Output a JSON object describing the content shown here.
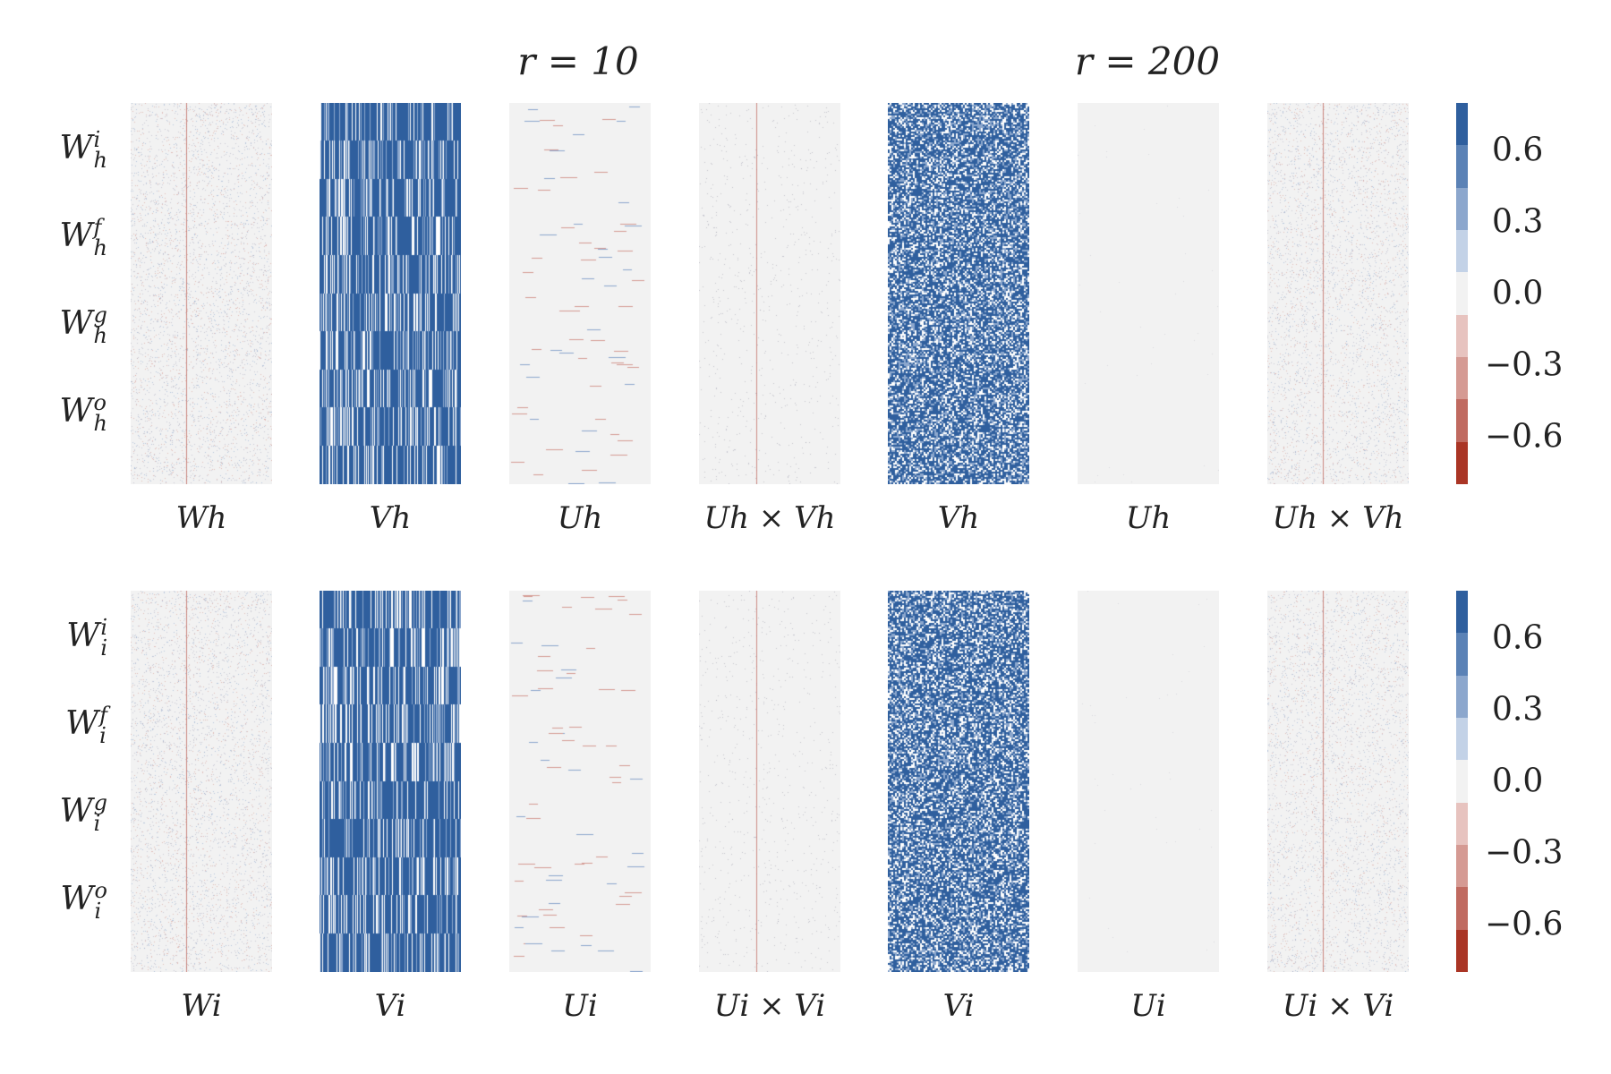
{
  "titles": {
    "left": "r = 10",
    "right": "r = 200"
  },
  "rows": [
    {
      "id": "h",
      "row_labels": [
        {
          "base": "W",
          "sup": "i",
          "sub": "h"
        },
        {
          "base": "W",
          "sup": "f",
          "sub": "h"
        },
        {
          "base": "W",
          "sup": "g",
          "sub": "h"
        },
        {
          "base": "W",
          "sup": "o",
          "sub": "h"
        }
      ],
      "panel_labels": [
        "W_h",
        "V_h",
        "U_h",
        "U_h × V_h",
        "V_h",
        "U_h",
        "U_h × V_h"
      ],
      "panel_labels_display": [
        "Wh",
        "Vh",
        "Uh",
        "Uh × Vh",
        "Vh",
        "Uh",
        "Uh × Vh"
      ]
    },
    {
      "id": "i",
      "row_labels": [
        {
          "base": "W",
          "sup": "i",
          "sub": "i"
        },
        {
          "base": "W",
          "sup": "f",
          "sub": "i"
        },
        {
          "base": "W",
          "sup": "g",
          "sub": "i"
        },
        {
          "base": "W",
          "sup": "o",
          "sub": "i"
        }
      ],
      "panel_labels": [
        "W_i",
        "V_i",
        "U_i",
        "U_i × V_i",
        "V_i",
        "U_i",
        "U_i × V_i"
      ],
      "panel_labels_display": [
        "Wi",
        "Vi",
        "Ui",
        "Ui × Vi",
        "Vi",
        "Ui",
        "Ui × Vi"
      ]
    }
  ],
  "chart_data": {
    "type": "heatmap",
    "description_free": true,
    "panel_kinds": [
      "weight-noise",
      "dense-binary",
      "sparse-lines",
      "near-zero-lines",
      "dense-random",
      "near-zero",
      "weight-noise"
    ],
    "colorbar": {
      "ticks": [
        "0.6",
        "0.3",
        "0.0",
        "−0.3",
        "−0.6"
      ],
      "tick_values": [
        0.6,
        0.3,
        0.0,
        -0.3,
        -0.6
      ],
      "range": [
        -0.8,
        0.8
      ],
      "colors": [
        "#2f5f9e",
        "#5b82b6",
        "#8ca7cd",
        "#c3d2e7",
        "#f2f2f2",
        "#e7c3bf",
        "#d59a93",
        "#c06a60",
        "#aa3525"
      ]
    }
  },
  "colors": {
    "background": "#ffffff",
    "panel_bg": "#f2f2f2",
    "blue": "#2f5f9e",
    "red": "#aa3525"
  }
}
